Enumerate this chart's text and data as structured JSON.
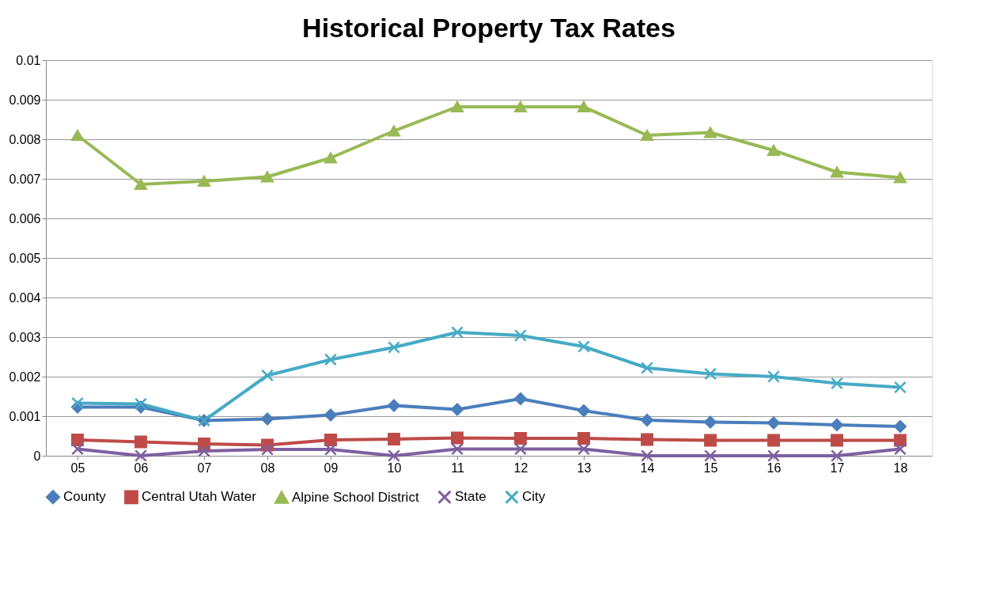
{
  "chart_data": {
    "type": "line",
    "title": "Historical Property Tax Rates",
    "categories": [
      "05",
      "06",
      "07",
      "08",
      "09",
      "10",
      "11",
      "12",
      "13",
      "14",
      "15",
      "16",
      "17",
      "18"
    ],
    "series": [
      {
        "name": "County",
        "color": "#4a7ebb",
        "marker": "diamond",
        "values": [
          0.00123,
          0.00123,
          0.00089,
          0.00093,
          0.00103,
          0.00127,
          0.00117,
          0.00144,
          0.00114,
          0.0009,
          0.00085,
          0.00083,
          0.00078,
          0.00074
        ]
      },
      {
        "name": "Central Utah Water",
        "color": "#be4b48",
        "marker": "square",
        "values": [
          0.0004,
          0.00035,
          0.0003,
          0.00027,
          0.0004,
          0.00042,
          0.00045,
          0.00044,
          0.00044,
          0.00041,
          0.00039,
          0.00039,
          0.00039,
          0.00039
        ]
      },
      {
        "name": "Alpine School District",
        "color": "#98b954",
        "marker": "triangle",
        "values": [
          0.0081,
          0.00686,
          0.00694,
          0.00705,
          0.00753,
          0.00821,
          0.00882,
          0.00882,
          0.00882,
          0.0081,
          0.00817,
          0.00772,
          0.00717,
          0.00703
        ]
      },
      {
        "name": "State",
        "color": "#7d60a0",
        "marker": "cross",
        "values": [
          0.00017,
          0.0,
          0.00012,
          0.00016,
          0.00016,
          0.0,
          0.00017,
          0.00017,
          0.00017,
          0.0,
          0.0,
          0.0,
          0.0,
          0.00017
        ]
      },
      {
        "name": "City",
        "color": "#46aac5",
        "marker": "cross",
        "values": [
          0.00133,
          0.00131,
          0.00089,
          0.00203,
          0.00243,
          0.00274,
          0.00312,
          0.00304,
          0.00276,
          0.00222,
          0.00207,
          0.002,
          0.00183,
          0.00173
        ]
      }
    ],
    "ylim": [
      0,
      0.01
    ],
    "yticks": [
      0,
      0.001,
      0.002,
      0.003,
      0.004,
      0.005,
      0.006,
      0.007,
      0.008,
      0.009,
      0.01
    ],
    "grid": "y",
    "legend": "bottom",
    "line_style": "solid"
  }
}
